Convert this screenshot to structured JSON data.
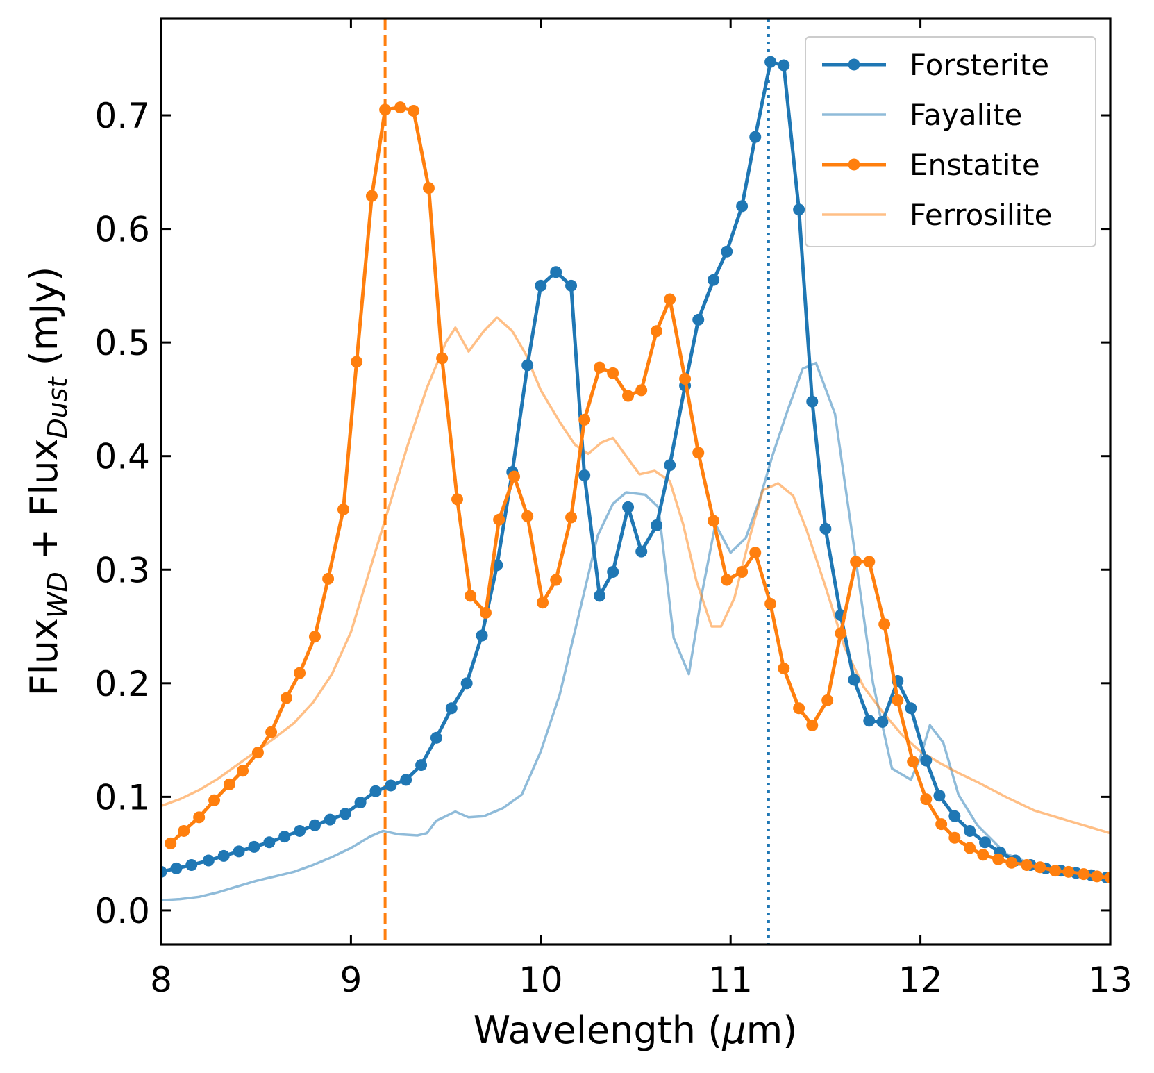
{
  "chart_data": {
    "type": "line",
    "title": "",
    "xlabel": "Wavelength (μm)",
    "xlabel_parts": {
      "text": "Wavelength (",
      "greek": "μ",
      "rest": "m)"
    },
    "ylabel": "Flux_WD + Flux_Dust (mJy)",
    "ylabel_parts": {
      "p1": "Flux",
      "sub1": "WD",
      "p2": " + Flux",
      "sub2": "Dust",
      "p3": " (mJy)"
    },
    "xlim": [
      8,
      13
    ],
    "ylim": [
      -0.03,
      0.785
    ],
    "xticks": [
      8,
      9,
      10,
      11,
      12,
      13
    ],
    "xtick_labels": [
      "8",
      "9",
      "10",
      "11",
      "12",
      "13"
    ],
    "yticks": [
      0.0,
      0.1,
      0.2,
      0.3,
      0.4,
      0.5,
      0.6,
      0.7
    ],
    "ytick_labels": [
      "0.0",
      "0.1",
      "0.2",
      "0.3",
      "0.4",
      "0.5",
      "0.6",
      "0.7"
    ],
    "grid": false,
    "legend_position": "top-right",
    "vlines": [
      {
        "x": 9.18,
        "style": "dashed",
        "color": "#ff7f0e"
      },
      {
        "x": 11.2,
        "style": "dotted",
        "color": "#1f77b4"
      }
    ],
    "series": [
      {
        "name": "Forsterite",
        "color": "#1f77b4",
        "alpha": 1.0,
        "markers": true,
        "x": [
          8.0,
          8.08,
          8.16,
          8.25,
          8.33,
          8.41,
          8.49,
          8.57,
          8.65,
          8.73,
          8.81,
          8.89,
          8.97,
          9.05,
          9.13,
          9.21,
          9.29,
          9.37,
          9.45,
          9.53,
          9.61,
          9.69,
          9.77,
          9.85,
          9.93,
          10.0,
          10.08,
          10.16,
          10.23,
          10.31,
          10.38,
          10.46,
          10.53,
          10.61,
          10.68,
          10.76,
          10.83,
          10.91,
          10.98,
          11.06,
          11.13,
          11.21,
          11.28,
          11.36,
          11.43,
          11.5,
          11.58,
          11.65,
          11.73,
          11.8,
          11.88,
          11.95,
          12.03,
          12.1,
          12.18,
          12.26,
          12.34,
          12.42,
          12.5,
          12.58,
          12.66,
          12.74,
          12.82,
          12.9,
          12.98
        ],
        "values": [
          0.034,
          0.037,
          0.04,
          0.044,
          0.048,
          0.052,
          0.056,
          0.06,
          0.065,
          0.07,
          0.075,
          0.08,
          0.085,
          0.095,
          0.105,
          0.11,
          0.115,
          0.128,
          0.152,
          0.178,
          0.2,
          0.242,
          0.304,
          0.386,
          0.48,
          0.55,
          0.562,
          0.55,
          0.383,
          0.277,
          0.298,
          0.355,
          0.316,
          0.339,
          0.392,
          0.462,
          0.52,
          0.555,
          0.58,
          0.62,
          0.681,
          0.747,
          0.744,
          0.617,
          0.448,
          0.336,
          0.26,
          0.203,
          0.167,
          0.166,
          0.202,
          0.178,
          0.132,
          0.101,
          0.083,
          0.07,
          0.06,
          0.051,
          0.044,
          0.04,
          0.037,
          0.035,
          0.033,
          0.031,
          0.029
        ]
      },
      {
        "name": "Fayalite",
        "color": "#1f77b4",
        "alpha": 0.5,
        "markers": false,
        "x": [
          8.0,
          8.1,
          8.2,
          8.3,
          8.4,
          8.5,
          8.6,
          8.7,
          8.8,
          8.9,
          9.0,
          9.1,
          9.17,
          9.25,
          9.35,
          9.4,
          9.45,
          9.55,
          9.62,
          9.7,
          9.8,
          9.9,
          10.0,
          10.1,
          10.2,
          10.3,
          10.38,
          10.45,
          10.55,
          10.62,
          10.7,
          10.78,
          10.85,
          10.92,
          11.0,
          11.08,
          11.15,
          11.22,
          11.3,
          11.38,
          11.45,
          11.55,
          11.65,
          11.75,
          11.85,
          11.95,
          12.0,
          12.05,
          12.12,
          12.2,
          12.3,
          12.45,
          12.6,
          12.8,
          13.0
        ],
        "values": [
          0.009,
          0.01,
          0.012,
          0.016,
          0.021,
          0.026,
          0.03,
          0.034,
          0.04,
          0.047,
          0.055,
          0.065,
          0.07,
          0.067,
          0.066,
          0.068,
          0.079,
          0.087,
          0.082,
          0.083,
          0.09,
          0.102,
          0.14,
          0.19,
          0.26,
          0.33,
          0.358,
          0.368,
          0.366,
          0.355,
          0.24,
          0.208,
          0.28,
          0.34,
          0.315,
          0.328,
          0.36,
          0.4,
          0.44,
          0.477,
          0.482,
          0.437,
          0.32,
          0.2,
          0.125,
          0.115,
          0.135,
          0.163,
          0.148,
          0.102,
          0.075,
          0.05,
          0.04,
          0.033,
          0.027
        ]
      },
      {
        "name": "Enstatite",
        "color": "#ff7f0e",
        "alpha": 1.0,
        "markers": true,
        "x": [
          8.05,
          8.12,
          8.2,
          8.28,
          8.36,
          8.43,
          8.51,
          8.58,
          8.66,
          8.73,
          8.81,
          8.88,
          8.96,
          9.03,
          9.11,
          9.18,
          9.26,
          9.33,
          9.41,
          9.48,
          9.56,
          9.63,
          9.71,
          9.78,
          9.86,
          9.93,
          10.01,
          10.08,
          10.16,
          10.23,
          10.31,
          10.38,
          10.46,
          10.53,
          10.61,
          10.68,
          10.76,
          10.83,
          10.91,
          10.98,
          11.06,
          11.13,
          11.21,
          11.28,
          11.36,
          11.43,
          11.51,
          11.58,
          11.66,
          11.73,
          11.81,
          11.88,
          11.96,
          12.03,
          12.11,
          12.18,
          12.26,
          12.33,
          12.41,
          12.48,
          12.56,
          12.63,
          12.71,
          12.78,
          12.86,
          12.93,
          13.0
        ],
        "values": [
          0.059,
          0.07,
          0.082,
          0.097,
          0.111,
          0.123,
          0.139,
          0.157,
          0.187,
          0.209,
          0.241,
          0.292,
          0.353,
          0.483,
          0.629,
          0.705,
          0.707,
          0.704,
          0.636,
          0.486,
          0.362,
          0.277,
          0.262,
          0.344,
          0.382,
          0.347,
          0.271,
          0.291,
          0.346,
          0.432,
          0.478,
          0.473,
          0.453,
          0.458,
          0.51,
          0.538,
          0.468,
          0.403,
          0.343,
          0.291,
          0.298,
          0.315,
          0.27,
          0.213,
          0.178,
          0.163,
          0.185,
          0.244,
          0.307,
          0.307,
          0.252,
          0.185,
          0.131,
          0.098,
          0.076,
          0.064,
          0.055,
          0.049,
          0.045,
          0.042,
          0.04,
          0.038,
          0.035,
          0.034,
          0.032,
          0.03,
          0.029
        ]
      },
      {
        "name": "Ferrosilite",
        "color": "#ff7f0e",
        "alpha": 0.5,
        "markers": false,
        "x": [
          8.0,
          8.1,
          8.2,
          8.3,
          8.4,
          8.5,
          8.6,
          8.7,
          8.8,
          8.9,
          9.0,
          9.1,
          9.2,
          9.3,
          9.4,
          9.5,
          9.55,
          9.62,
          9.7,
          9.77,
          9.85,
          9.92,
          10.0,
          10.1,
          10.18,
          10.25,
          10.32,
          10.38,
          10.45,
          10.52,
          10.6,
          10.68,
          10.75,
          10.82,
          10.9,
          10.95,
          11.02,
          11.1,
          11.17,
          11.25,
          11.33,
          11.4,
          11.5,
          11.6,
          11.7,
          11.8,
          11.9,
          12.0,
          12.1,
          12.2,
          12.3,
          12.45,
          12.6,
          12.8,
          13.0
        ],
        "values": [
          0.092,
          0.098,
          0.106,
          0.116,
          0.128,
          0.14,
          0.152,
          0.165,
          0.183,
          0.208,
          0.245,
          0.3,
          0.355,
          0.41,
          0.46,
          0.5,
          0.513,
          0.492,
          0.51,
          0.522,
          0.51,
          0.49,
          0.458,
          0.43,
          0.41,
          0.402,
          0.412,
          0.416,
          0.4,
          0.384,
          0.387,
          0.378,
          0.34,
          0.29,
          0.25,
          0.25,
          0.275,
          0.328,
          0.37,
          0.376,
          0.365,
          0.335,
          0.285,
          0.232,
          0.197,
          0.175,
          0.155,
          0.14,
          0.13,
          0.121,
          0.113,
          0.1,
          0.088,
          0.078,
          0.068
        ]
      }
    ]
  }
}
